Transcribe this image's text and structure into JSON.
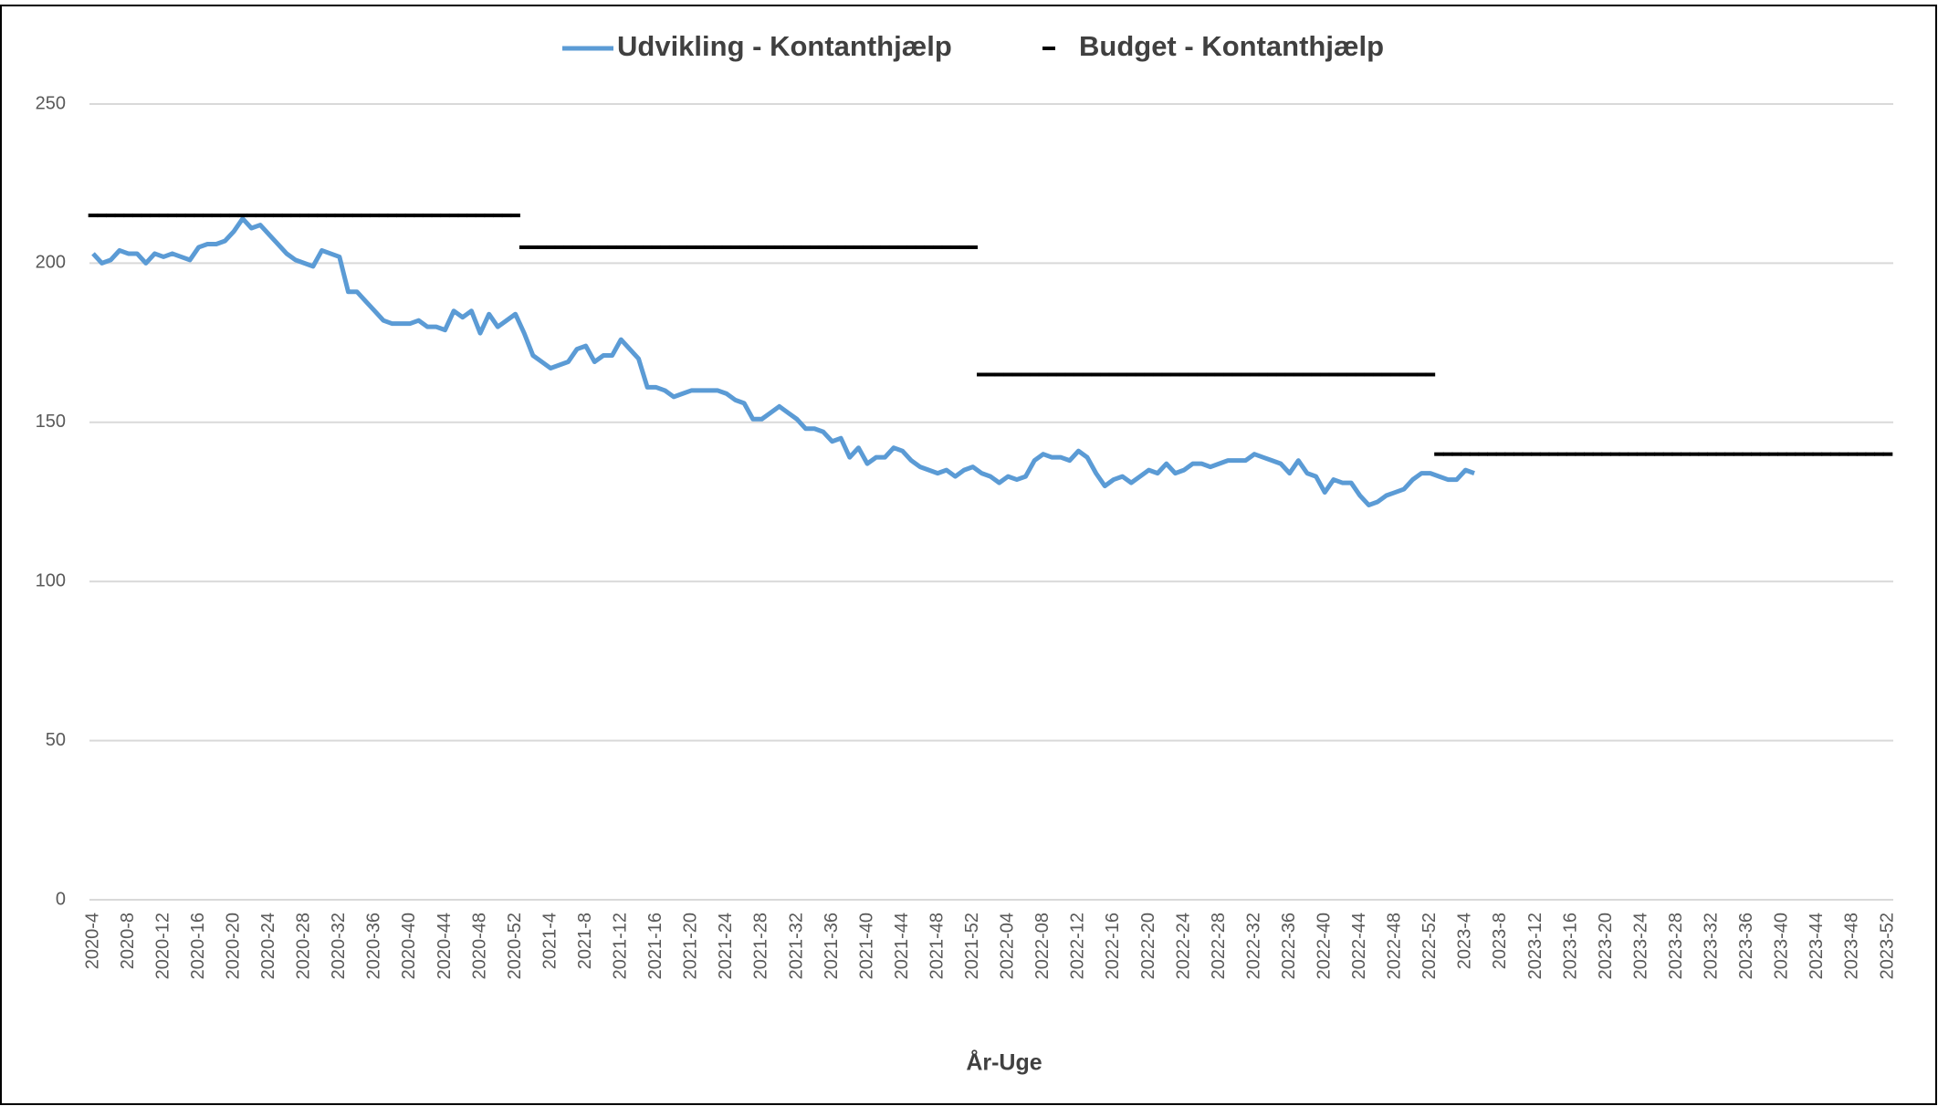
{
  "chart_data": {
    "type": "line",
    "x_label": "År-Uge",
    "categories": [
      "2020-4",
      null,
      null,
      null,
      "2020-8",
      null,
      null,
      null,
      "2020-12",
      null,
      null,
      null,
      "2020-16",
      null,
      null,
      null,
      "2020-20",
      null,
      null,
      null,
      "2020-24",
      null,
      null,
      null,
      "2020-28",
      null,
      null,
      null,
      "2020-32",
      null,
      null,
      null,
      "2020-36",
      null,
      null,
      null,
      "2020-40",
      null,
      null,
      null,
      "2020-44",
      null,
      null,
      null,
      "2020-48",
      null,
      null,
      null,
      "2020-52",
      null,
      null,
      null,
      "2021-4",
      null,
      null,
      null,
      "2021-8",
      null,
      null,
      null,
      "2021-12",
      null,
      null,
      null,
      "2021-16",
      null,
      null,
      null,
      "2021-20",
      null,
      null,
      null,
      "2021-24",
      null,
      null,
      null,
      "2021-28",
      null,
      null,
      null,
      "2021-32",
      null,
      null,
      null,
      "2021-36",
      null,
      null,
      null,
      "2021-40",
      null,
      null,
      null,
      "2021-44",
      null,
      null,
      null,
      "2021-48",
      null,
      null,
      null,
      "2021-52",
      null,
      null,
      null,
      "2022-04",
      null,
      null,
      null,
      "2022-08",
      null,
      null,
      null,
      "2022-12",
      null,
      null,
      null,
      "2022-16",
      null,
      null,
      null,
      "2022-20",
      null,
      null,
      null,
      "2022-24",
      null,
      null,
      null,
      "2022-28",
      null,
      null,
      null,
      "2022-32",
      null,
      null,
      null,
      "2022-36",
      null,
      null,
      null,
      "2022-40",
      null,
      null,
      null,
      "2022-44",
      null,
      null,
      null,
      "2022-48",
      null,
      null,
      null,
      "2022-52",
      null,
      null,
      null,
      "2023-4",
      null,
      null,
      null,
      "2023-8",
      null,
      null,
      null,
      "2023-12",
      null,
      null,
      null,
      "2023-16",
      null,
      null,
      null,
      "2023-20",
      null,
      null,
      null,
      "2023-24",
      null,
      null,
      null,
      "2023-28",
      null,
      null,
      null,
      "2023-32",
      null,
      null,
      null,
      "2023-36",
      null,
      null,
      null,
      "2023-40",
      null,
      null,
      null,
      "2023-44",
      null,
      null,
      null,
      "2023-48",
      null,
      null,
      null,
      "2023-52"
    ],
    "series": [
      {
        "name": "Udvikling - Kontanthjælp",
        "color": "#5b9bd5",
        "style": "line",
        "values": [
          203,
          200,
          201,
          204,
          203,
          203,
          200,
          203,
          202,
          203,
          202,
          201,
          205,
          206,
          206,
          207,
          210,
          214,
          211,
          212,
          209,
          206,
          203,
          201,
          200,
          199,
          204,
          203,
          202,
          191,
          191,
          188,
          185,
          182,
          181,
          181,
          181,
          182,
          180,
          180,
          179,
          185,
          183,
          185,
          178,
          184,
          180,
          182,
          184,
          178,
          171,
          169,
          167,
          168,
          169,
          173,
          174,
          169,
          171,
          171,
          176,
          173,
          170,
          161,
          161,
          160,
          158,
          159,
          160,
          160,
          160,
          160,
          159,
          157,
          156,
          151,
          151,
          153,
          155,
          153,
          151,
          148,
          148,
          147,
          144,
          145,
          139,
          142,
          137,
          139,
          139,
          142,
          141,
          138,
          136,
          135,
          134,
          135,
          133,
          135,
          136,
          134,
          133,
          131,
          133,
          132,
          133,
          138,
          140,
          139,
          139,
          138,
          141,
          139,
          134,
          130,
          132,
          133,
          131,
          133,
          135,
          134,
          137,
          134,
          135,
          137,
          137,
          136,
          137,
          138,
          138,
          138,
          140,
          139,
          138,
          137,
          134,
          138,
          134,
          133,
          128,
          132,
          131,
          131,
          127,
          124,
          125,
          127,
          128,
          129,
          132,
          134,
          134,
          133,
          132,
          132,
          135,
          134,
          null,
          null,
          null,
          null,
          null,
          null,
          null,
          null,
          null,
          null,
          null,
          null,
          null,
          null,
          null,
          null,
          null,
          null,
          null,
          null,
          null,
          null,
          null,
          null,
          null,
          null,
          null,
          null,
          null,
          null,
          null,
          null,
          null,
          null,
          null,
          null,
          null,
          null,
          null,
          null,
          null,
          null,
          null,
          null,
          null,
          null,
          null
        ]
      },
      {
        "name": "Budget - Kontanthjælp",
        "color": "#000000",
        "style": "dash",
        "values": [
          215,
          215,
          215,
          215,
          215,
          215,
          215,
          215,
          215,
          215,
          215,
          215,
          215,
          215,
          215,
          215,
          215,
          215,
          215,
          215,
          215,
          215,
          215,
          215,
          215,
          215,
          215,
          215,
          215,
          215,
          215,
          215,
          215,
          215,
          215,
          215,
          215,
          215,
          215,
          215,
          215,
          215,
          215,
          215,
          215,
          215,
          215,
          215,
          215,
          205,
          205,
          205,
          205,
          205,
          205,
          205,
          205,
          205,
          205,
          205,
          205,
          205,
          205,
          205,
          205,
          205,
          205,
          205,
          205,
          205,
          205,
          205,
          205,
          205,
          205,
          205,
          205,
          205,
          205,
          205,
          205,
          205,
          205,
          205,
          205,
          205,
          205,
          205,
          205,
          205,
          205,
          205,
          205,
          205,
          205,
          205,
          205,
          205,
          205,
          205,
          205,
          165,
          165,
          165,
          165,
          165,
          165,
          165,
          165,
          165,
          165,
          165,
          165,
          165,
          165,
          165,
          165,
          165,
          165,
          165,
          165,
          165,
          165,
          165,
          165,
          165,
          165,
          165,
          165,
          165,
          165,
          165,
          165,
          165,
          165,
          165,
          165,
          165,
          165,
          165,
          165,
          165,
          165,
          165,
          165,
          165,
          165,
          165,
          165,
          165,
          165,
          165,
          165,
          140,
          140,
          140,
          140,
          140,
          140,
          140,
          140,
          140,
          140,
          140,
          140,
          140,
          140,
          140,
          140,
          140,
          140,
          140,
          140,
          140,
          140,
          140,
          140,
          140,
          140,
          140,
          140,
          140,
          140,
          140,
          140,
          140,
          140,
          140,
          140,
          140,
          140,
          140,
          140,
          140,
          140,
          140,
          140,
          140,
          140,
          140,
          140,
          140,
          140,
          140,
          140
        ]
      }
    ],
    "ylim": [
      0,
      250
    ],
    "yticks": [
      0,
      50,
      100,
      150,
      200,
      250
    ],
    "grid": true,
    "legend": "top"
  }
}
